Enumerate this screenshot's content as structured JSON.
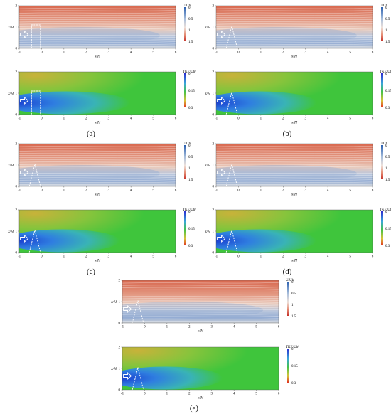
{
  "figure": {
    "subfigure_labels": [
      "(a)",
      "(b)",
      "(c)",
      "(d)",
      "(e)"
    ]
  },
  "plot": {
    "xlabel": "x/H",
    "ylabel": "z/H",
    "xticks": [
      "-1",
      "0",
      "1",
      "2",
      "3",
      "4",
      "5",
      "6"
    ],
    "yticks": [
      "0",
      "1",
      "2"
    ],
    "velocity_colorbar": {
      "title": "U/Uh",
      "ticks": [
        "0",
        "0.5",
        "1",
        "1.5"
      ]
    },
    "tke_colorbar": {
      "title": "TKE/Uh²",
      "ticks": [
        "0",
        "0.15",
        "0.3"
      ]
    }
  },
  "colors": {
    "velocity_high": "#d8684f",
    "velocity_mid": "#e9cbbd",
    "velocity_low": "#94acd3",
    "tke_background": "#3fc53c",
    "tke_upper": "#c8b23a",
    "tke_wake": "#1a3fd0"
  }
}
